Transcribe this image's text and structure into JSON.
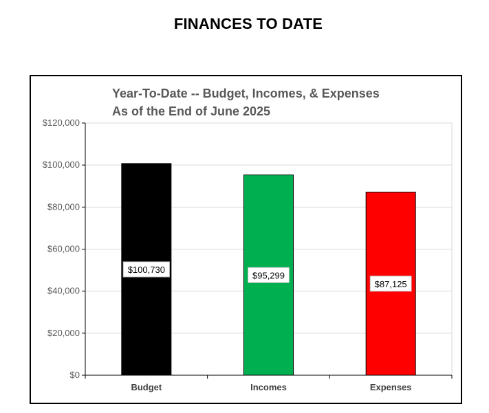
{
  "page": {
    "title": "FINANCES TO DATE"
  },
  "chart_data": {
    "type": "bar",
    "title": "Year-To-Date -- Budget, Incomes, & Expenses",
    "subtitle": "As of the End of June 2025",
    "categories": [
      "Budget",
      "Incomes",
      "Expenses"
    ],
    "values": [
      100730,
      95299,
      87125
    ],
    "data_labels": [
      "$100,730",
      "$95,299",
      "$87,125"
    ],
    "colors": [
      "#000000",
      "#00b050",
      "#ff0000"
    ],
    "ylim": [
      0,
      120000
    ],
    "yticks": [
      0,
      20000,
      40000,
      60000,
      80000,
      100000,
      120000
    ],
    "ytick_labels": [
      "$0",
      "$20,000",
      "$40,000",
      "$60,000",
      "$80,000",
      "$100,000",
      "$120,000"
    ],
    "grid": true,
    "legend": "none",
    "xlabel": "",
    "ylabel": ""
  }
}
